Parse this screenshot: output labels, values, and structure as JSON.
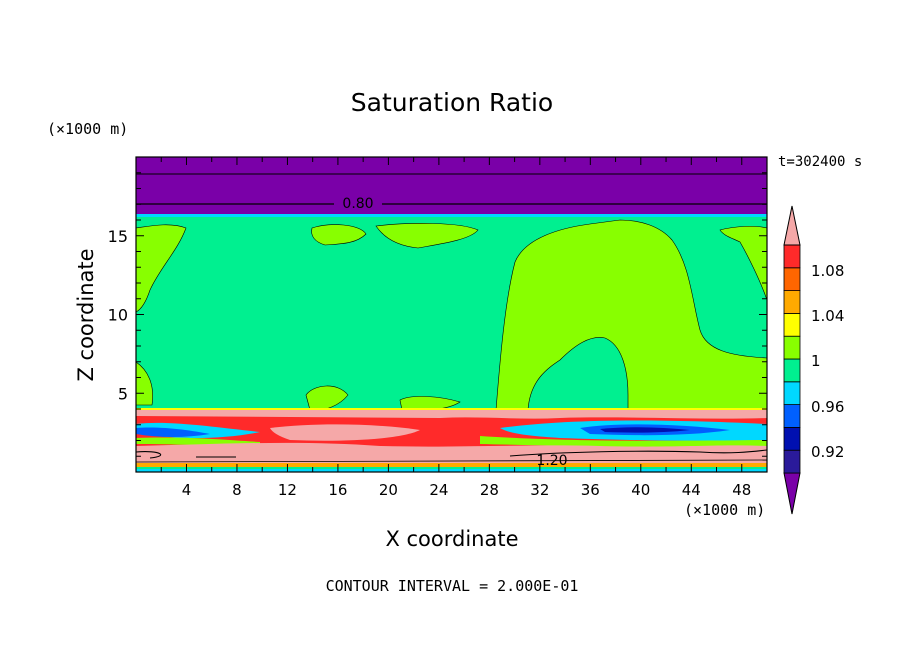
{
  "chart_data": {
    "type": "heatmap",
    "title": "Saturation Ratio",
    "xlabel": "X coordinate",
    "ylabel": "Z coordinate",
    "x_unit": "(×1000 m)",
    "z_unit": "(×1000 m)",
    "time_label": "t=302400 s",
    "contour_interval_text": "CONTOUR INTERVAL = 2.000E-01",
    "xlim": [
      0,
      50
    ],
    "ylim": [
      0,
      20
    ],
    "x_ticks": [
      4,
      8,
      12,
      16,
      20,
      24,
      28,
      32,
      36,
      40,
      44,
      48
    ],
    "y_ticks": [
      5,
      10,
      15
    ],
    "colorbar": {
      "tick_labels": [
        "1.08",
        "1.04",
        "1",
        "0.96",
        "0.92"
      ],
      "colors": [
        "#7a00a8",
        "#2a1a9a",
        "#0010b0",
        "#0060ff",
        "#00d8ff",
        "#00f090",
        "#88ff00",
        "#ffff00",
        "#ffaa00",
        "#ff6600",
        "#ff2a2a",
        "#f5a8a8"
      ]
    },
    "contour_labels": [
      {
        "value": "0.80",
        "x": 19.5,
        "z": 17.3
      },
      {
        "value": "1.20",
        "x": 33.5,
        "z": 1.0
      }
    ],
    "regions": [
      {
        "level": "below 0.90",
        "z_range": [
          16.2,
          20
        ]
      },
      {
        "level": "0.98-1.00",
        "z_range": [
          4.0,
          16.2
        ]
      },
      {
        "level": "1.00-1.02",
        "description": "large plume x 29-44, z 4-16"
      },
      {
        "level": "mixed 0.92-1.20",
        "z_range": [
          0,
          4.0
        ]
      }
    ]
  }
}
